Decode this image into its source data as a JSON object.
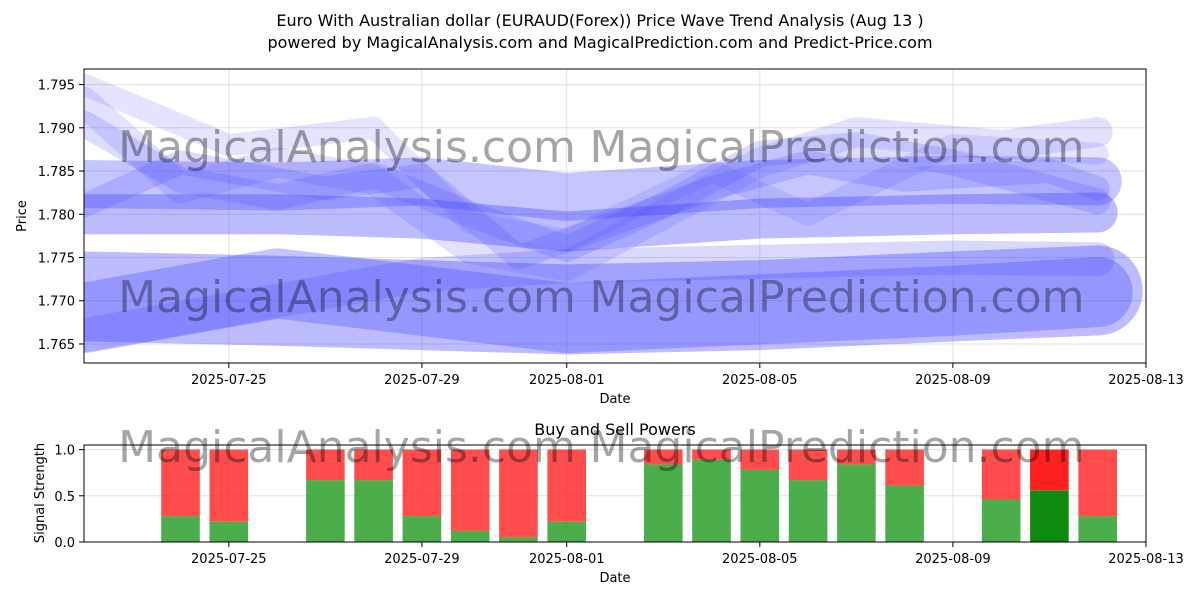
{
  "title_line1": "Euro With Australian dollar (EURAUD(Forex)) Price Wave Trend Analysis (Aug 13 )",
  "title_line2": "powered by MagicalAnalysis.com and MagicalPrediction.com and Predict-Price.com",
  "watermarks": [
    "MagicalAnalysis.com",
    "MagicalPrediction.com"
  ],
  "colors": {
    "wave": "#3f3fff",
    "buy": "#2ca02c",
    "sell": "#ff2020",
    "grid": "#e0e0e0"
  },
  "chart_data": [
    {
      "type": "line",
      "title": "",
      "xlabel": "Date",
      "ylabel": "Price",
      "xlim": [
        "2025-07-22",
        "2025-08-13"
      ],
      "ylim": [
        1.7628,
        1.7968
      ],
      "x_ticks": [
        "2025-07-25",
        "2025-07-29",
        "2025-08-01",
        "2025-08-05",
        "2025-08-09",
        "2025-08-13"
      ],
      "y_ticks": [
        1.765,
        1.77,
        1.775,
        1.78,
        1.785,
        1.79,
        1.795
      ],
      "grid": true,
      "series": [
        {
          "x": [
            "2025-07-22",
            "2025-07-26",
            "2025-07-29",
            "2025-08-01",
            "2025-08-05",
            "2025-08-09",
            "2025-08-12"
          ],
          "values": [
            1.7705,
            1.77,
            1.7695,
            1.769,
            1.7695,
            1.7705,
            1.7712
          ]
        },
        {
          "x": [
            "2025-07-22",
            "2025-07-26",
            "2025-07-29",
            "2025-08-01",
            "2025-08-05",
            "2025-08-09",
            "2025-08-12"
          ],
          "values": [
            1.768,
            1.772,
            1.77,
            1.768,
            1.769,
            1.77,
            1.771
          ]
        },
        {
          "x": [
            "2025-07-22",
            "2025-07-26",
            "2025-07-29",
            "2025-08-01",
            "2025-08-05",
            "2025-08-09",
            "2025-08-12"
          ],
          "values": [
            1.78,
            1.78,
            1.7795,
            1.778,
            1.7795,
            1.78,
            1.7802
          ]
        },
        {
          "x": [
            "2025-07-22",
            "2025-07-26",
            "2025-07-29",
            "2025-08-01",
            "2025-08-05",
            "2025-08-09",
            "2025-08-12"
          ],
          "values": [
            1.7835,
            1.7832,
            1.7838,
            1.782,
            1.7835,
            1.784,
            1.7838
          ]
        },
        {
          "x": [
            "2025-07-22",
            "2025-07-24",
            "2025-07-26",
            "2025-07-28",
            "2025-07-30",
            "2025-08-01",
            "2025-08-03",
            "2025-08-05",
            "2025-08-07",
            "2025-08-09",
            "2025-08-12"
          ],
          "values": [
            1.7905,
            1.784,
            1.782,
            1.7845,
            1.78,
            1.776,
            1.781,
            1.787,
            1.788,
            1.786,
            1.7815
          ]
        },
        {
          "x": [
            "2025-07-22",
            "2025-07-23",
            "2025-07-24",
            "2025-07-26",
            "2025-07-28",
            "2025-07-30",
            "2025-08-01",
            "2025-08-03",
            "2025-08-05",
            "2025-08-07",
            "2025-08-10",
            "2025-08-12"
          ],
          "values": [
            1.793,
            1.788,
            1.783,
            1.786,
            1.784,
            1.776,
            1.774,
            1.78,
            1.786,
            1.7895,
            1.788,
            1.7895
          ]
        },
        {
          "x": [
            "2025-07-22",
            "2025-07-24",
            "2025-07-27",
            "2025-07-29",
            "2025-07-31",
            "2025-08-02",
            "2025-08-04",
            "2025-08-06",
            "2025-08-08",
            "2025-08-11",
            "2025-08-12"
          ],
          "values": [
            1.781,
            1.786,
            1.783,
            1.7845,
            1.775,
            1.779,
            1.783,
            1.786,
            1.784,
            1.785,
            1.783
          ]
        },
        {
          "x": [
            "2025-07-22",
            "2025-07-25",
            "2025-07-28",
            "2025-07-30",
            "2025-08-01",
            "2025-08-04",
            "2025-08-06",
            "2025-08-09",
            "2025-08-12"
          ],
          "values": [
            1.795,
            1.788,
            1.79,
            1.779,
            1.777,
            1.785,
            1.78,
            1.788,
            1.787
          ]
        },
        {
          "x": [
            "2025-07-22",
            "2025-07-25",
            "2025-07-29",
            "2025-08-01",
            "2025-08-05",
            "2025-08-09",
            "2025-08-12"
          ],
          "values": [
            1.766,
            1.769,
            1.773,
            1.774,
            1.7745,
            1.775,
            1.7748
          ]
        }
      ]
    },
    {
      "type": "bar",
      "title": "Buy and Sell Powers",
      "xlabel": "Date",
      "ylabel": "Signal Strength",
      "ylim": [
        0,
        1.05
      ],
      "y_ticks": [
        0.0,
        0.5,
        1.0
      ],
      "x_ticks": [
        "2025-07-25",
        "2025-07-29",
        "2025-08-01",
        "2025-08-05",
        "2025-08-09",
        "2025-08-13"
      ],
      "grid": true,
      "categories": [
        "2025-07-24",
        "2025-07-25",
        "2025-07-27",
        "2025-07-28",
        "2025-07-29",
        "2025-07-30",
        "2025-07-31",
        "2025-08-01",
        "2025-08-03",
        "2025-08-04",
        "2025-08-05",
        "2025-08-06",
        "2025-08-07",
        "2025-08-08",
        "2025-08-10",
        "2025-08-11",
        "2025-08-12"
      ],
      "series": [
        {
          "name": "",
          "values": [
            0.28,
            0.22,
            0.67,
            0.67,
            0.28,
            0.12,
            0.05,
            0.22,
            0.84,
            0.89,
            0.78,
            0.67,
            0.84,
            0.61,
            0.46,
            0.56,
            0.28
          ]
        },
        {
          "name": "",
          "values": [
            0.72,
            0.78,
            0.33,
            0.33,
            0.72,
            0.88,
            0.95,
            0.78,
            0.16,
            0.11,
            0.22,
            0.33,
            0.16,
            0.39,
            0.54,
            0.44,
            0.72
          ]
        }
      ],
      "highlight": "2025-08-11"
    }
  ]
}
